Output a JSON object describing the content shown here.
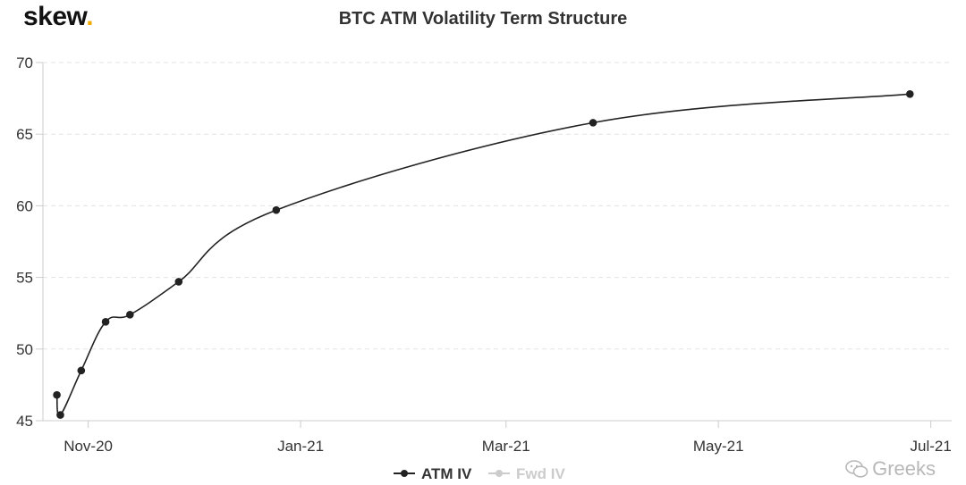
{
  "brand": {
    "name": "skew",
    "dot": "."
  },
  "watermark": {
    "text": "Greeks",
    "icon": "wechat-icon"
  },
  "chart_data": {
    "type": "line",
    "title": "BTC ATM Volatility Term Structure",
    "xlabel": "",
    "ylabel": "",
    "ylim": [
      45,
      70
    ],
    "yticks": [
      45,
      50,
      55,
      60,
      65,
      70
    ],
    "xlim": [
      "2020-10-19",
      "2021-07-07"
    ],
    "xticks": [
      {
        "date": "2020-11-01",
        "label": "Nov-20"
      },
      {
        "date": "2021-01-01",
        "label": "Jan-21"
      },
      {
        "date": "2021-03-01",
        "label": "Mar-21"
      },
      {
        "date": "2021-05-01",
        "label": "May-21"
      },
      {
        "date": "2021-07-01",
        "label": "Jul-21"
      }
    ],
    "grid": true,
    "legend_position": "bottom-center",
    "series": [
      {
        "name": "ATM IV",
        "color": "#222222",
        "visible": true,
        "points": [
          {
            "x": "2020-10-23",
            "y": 46.8
          },
          {
            "x": "2020-10-24",
            "y": 45.4
          },
          {
            "x": "2020-10-30",
            "y": 48.5
          },
          {
            "x": "2020-11-06",
            "y": 51.9
          },
          {
            "x": "2020-11-13",
            "y": 52.4
          },
          {
            "x": "2020-11-27",
            "y": 54.7
          },
          {
            "x": "2020-12-25",
            "y": 59.7
          },
          {
            "x": "2021-03-26",
            "y": 65.8
          },
          {
            "x": "2021-06-25",
            "y": 67.8
          }
        ]
      },
      {
        "name": "Fwd IV",
        "color": "#cccccc",
        "visible": false,
        "points": []
      }
    ]
  }
}
